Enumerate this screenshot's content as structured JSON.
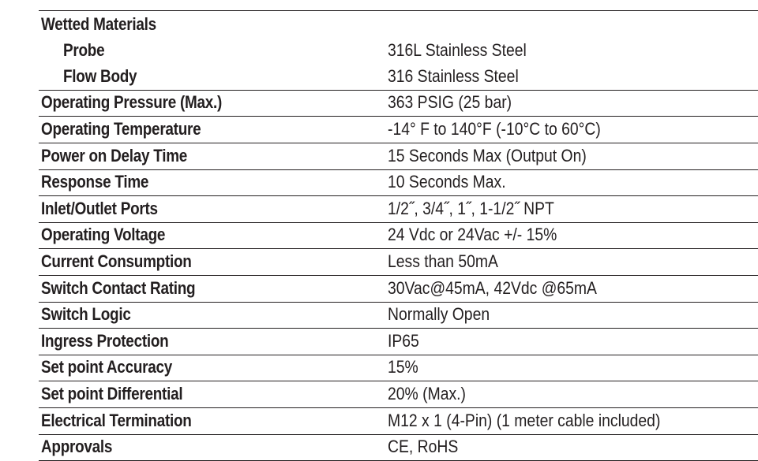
{
  "spec_rows": [
    {
      "label": "Wetted Materials",
      "value": ""
    },
    {
      "label": "Probe",
      "value": "316L Stainless Steel"
    },
    {
      "label": "Flow Body",
      "value": "316 Stainless Steel"
    },
    {
      "label": "Operating Pressure (Max.)",
      "value": "363 PSIG (25 bar)"
    },
    {
      "label": "Operating Temperature",
      "value": "-14° F to 140°F (-10°C to 60°C)"
    },
    {
      "label": "Power on Delay Time",
      "value": "15 Seconds Max (Output On)"
    },
    {
      "label": "Response Time",
      "value": "10 Seconds Max."
    },
    {
      "label": "Inlet/Outlet Ports",
      "value": "1/2˝, 3/4˝, 1˝, 1-1/2˝ NPT"
    },
    {
      "label": "Operating Voltage",
      "value": "24 Vdc or 24Vac +/- 15%"
    },
    {
      "label": "Current Consumption",
      "value": "Less than 50mA"
    },
    {
      "label": "Switch Contact Rating",
      "value": "30Vac@45mA, 42Vdc @65mA"
    },
    {
      "label": "Switch Logic",
      "value": "Normally Open"
    },
    {
      "label": "Ingress Protection",
      "value": "IP65"
    },
    {
      "label": "Set point Accuracy",
      "value": "15%"
    },
    {
      "label": "Set point Differential",
      "value": "20% (Max.)"
    },
    {
      "label": "Electrical Termination",
      "value": "M12 x 1 (4-Pin) (1 meter cable included)"
    },
    {
      "label": "Approvals",
      "value": "CE, RoHS"
    }
  ]
}
